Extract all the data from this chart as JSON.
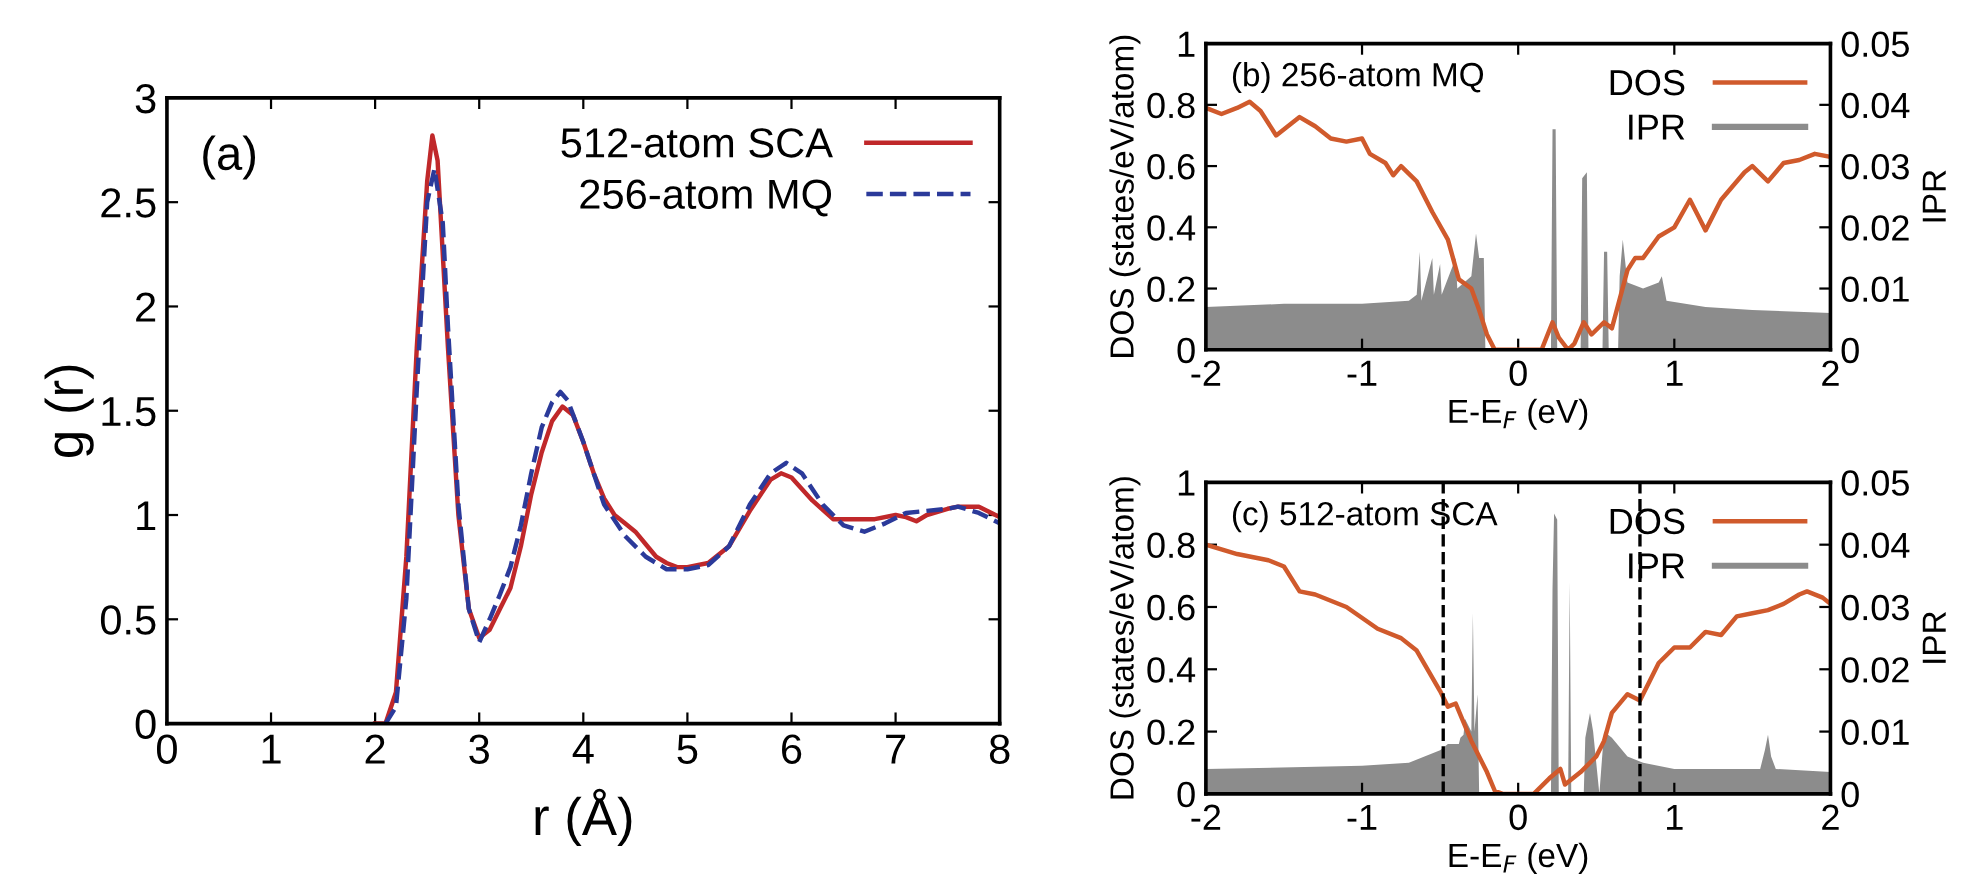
{
  "chart_data": [
    {
      "type": "line",
      "xlabel": "r (Å)",
      "ylabel": "g (r)",
      "annotations": [
        "(a)"
      ],
      "xlim": [
        0,
        8
      ],
      "ylim": [
        0,
        3
      ],
      "xticks": [
        0,
        1,
        2,
        3,
        4,
        5,
        6,
        7,
        8
      ],
      "yticks": [
        0,
        0.5,
        1,
        1.5,
        2,
        2.5,
        3
      ],
      "legend": "top right",
      "grid": false,
      "series": [
        {
          "name": "512-atom SCA",
          "color": "#c0282a",
          "line_style": "solid",
          "x": [
            2.0,
            2.1,
            2.2,
            2.3,
            2.4,
            2.5,
            2.55,
            2.6,
            2.7,
            2.8,
            2.9,
            3.0,
            3.1,
            3.2,
            3.3,
            3.4,
            3.5,
            3.6,
            3.7,
            3.8,
            3.9,
            4.0,
            4.1,
            4.2,
            4.3,
            4.4,
            4.5,
            4.6,
            4.7,
            4.8,
            4.9,
            5.0,
            5.2,
            5.4,
            5.6,
            5.8,
            5.9,
            6.0,
            6.2,
            6.4,
            6.6,
            6.8,
            7.0,
            7.1,
            7.2,
            7.3,
            7.5,
            7.6,
            7.8,
            8.0
          ],
          "values": [
            0,
            0,
            0.15,
            0.8,
            1.8,
            2.6,
            2.82,
            2.7,
            1.8,
            1.0,
            0.55,
            0.41,
            0.45,
            0.55,
            0.65,
            0.85,
            1.1,
            1.3,
            1.45,
            1.52,
            1.48,
            1.35,
            1.2,
            1.08,
            1.0,
            0.96,
            0.92,
            0.86,
            0.8,
            0.77,
            0.75,
            0.75,
            0.77,
            0.85,
            1.02,
            1.17,
            1.2,
            1.18,
            1.07,
            0.98,
            0.98,
            0.98,
            1.0,
            0.99,
            0.97,
            1.0,
            1.03,
            1.04,
            1.04,
            0.99
          ]
        },
        {
          "name": "256-atom MQ",
          "color": "#2b3a9a",
          "line_style": "dashed",
          "x": [
            2.1,
            2.2,
            2.3,
            2.4,
            2.5,
            2.57,
            2.65,
            2.7,
            2.8,
            2.9,
            3.0,
            3.1,
            3.2,
            3.3,
            3.4,
            3.5,
            3.6,
            3.7,
            3.78,
            3.85,
            4.0,
            4.2,
            4.4,
            4.6,
            4.8,
            5.0,
            5.2,
            5.4,
            5.6,
            5.8,
            5.95,
            6.1,
            6.3,
            6.5,
            6.7,
            6.9,
            7.1,
            7.3,
            7.5,
            7.6,
            7.8,
            8.0
          ],
          "values": [
            0,
            0.08,
            0.6,
            1.6,
            2.5,
            2.66,
            2.4,
            1.9,
            1.05,
            0.55,
            0.39,
            0.5,
            0.62,
            0.75,
            0.95,
            1.2,
            1.42,
            1.54,
            1.59,
            1.55,
            1.35,
            1.05,
            0.9,
            0.8,
            0.74,
            0.74,
            0.76,
            0.85,
            1.05,
            1.2,
            1.25,
            1.2,
            1.05,
            0.95,
            0.92,
            0.96,
            1.01,
            1.02,
            1.03,
            1.04,
            1.01,
            0.96
          ]
        }
      ]
    },
    {
      "type": "line",
      "xlabel": "E-E$_{F}$ (eV)",
      "ylabel": "DOS (states/eV/atom)",
      "y2label": "IPR",
      "annotations": [
        "(b) 256-atom MQ"
      ],
      "xlim": [
        -2,
        2
      ],
      "ylim": [
        0,
        1
      ],
      "y2lim": [
        0,
        0.05
      ],
      "xticks": [
        -2,
        -1,
        0,
        1,
        2
      ],
      "yticks": [
        0,
        0.2,
        0.4,
        0.6,
        0.8,
        1
      ],
      "y2ticks": [
        0,
        0.01,
        0.02,
        0.03,
        0.04,
        0.05
      ],
      "legend": "top right",
      "grid": false,
      "series": [
        {
          "name": "DOS",
          "type": "line",
          "color": "#d05a2c",
          "x": [
            -2,
            -1.9,
            -1.8,
            -1.72,
            -1.65,
            -1.55,
            -1.4,
            -1.3,
            -1.2,
            -1.1,
            -1.0,
            -0.95,
            -0.85,
            -0.8,
            -0.75,
            -0.65,
            -0.55,
            -0.45,
            -0.38,
            -0.3,
            -0.25,
            -0.2,
            -0.15,
            0.15,
            0.22,
            0.26,
            0.32,
            0.36,
            0.42,
            0.47,
            0.55,
            0.6,
            0.7,
            0.75,
            0.8,
            0.9,
            1.0,
            1.1,
            1.15,
            1.2,
            1.3,
            1.45,
            1.5,
            1.6,
            1.7,
            1.8,
            1.9,
            2.0
          ],
          "values": [
            0.79,
            0.77,
            0.79,
            0.81,
            0.78,
            0.7,
            0.76,
            0.73,
            0.69,
            0.68,
            0.69,
            0.64,
            0.61,
            0.57,
            0.6,
            0.55,
            0.45,
            0.36,
            0.23,
            0.2,
            0.13,
            0.05,
            0,
            0,
            0.09,
            0.04,
            0,
            0.02,
            0.09,
            0.05,
            0.09,
            0.07,
            0.26,
            0.3,
            0.3,
            0.37,
            0.4,
            0.49,
            0.44,
            0.39,
            0.49,
            0.58,
            0.6,
            0.55,
            0.61,
            0.62,
            0.64,
            0.63
          ]
        },
        {
          "name": "IPR",
          "type": "area",
          "axis": "y2",
          "color": "#8c8c8c",
          "x": [
            -2,
            -1.5,
            -1.0,
            -0.7,
            -0.65,
            -0.63,
            -0.62,
            -0.55,
            -0.54,
            -0.5,
            -0.49,
            -0.4,
            -0.39,
            -0.3,
            -0.27,
            -0.25,
            -0.22,
            -0.21,
            0.21,
            0.22,
            0.24,
            0.25,
            0.4,
            0.41,
            0.44,
            0.45,
            0.54,
            0.55,
            0.57,
            0.58,
            0.64,
            0.65,
            0.67,
            0.7,
            0.8,
            0.9,
            0.92,
            0.95,
            1.2,
            1.5,
            2.0
          ],
          "values": [
            0.007,
            0.0075,
            0.0075,
            0.008,
            0.009,
            0.016,
            0.008,
            0.015,
            0.009,
            0.014,
            0.009,
            0.015,
            0.01,
            0.012,
            0.019,
            0.015,
            0.015,
            0,
            0,
            0.036,
            0.036,
            0,
            0,
            0.028,
            0.029,
            0,
            0,
            0.016,
            0.016,
            0,
            0,
            0.012,
            0.018,
            0.011,
            0.01,
            0.011,
            0.012,
            0.008,
            0.007,
            0.0065,
            0.006
          ]
        }
      ]
    },
    {
      "type": "line",
      "xlabel": "E-E$_{F}$ (eV)",
      "ylabel": "DOS (states/eV/atom)",
      "y2label": "IPR",
      "annotations": [
        "(c) 512-atom SCA"
      ],
      "xlim": [
        -2,
        2
      ],
      "ylim": [
        0,
        1
      ],
      "y2lim": [
        0,
        0.05
      ],
      "xticks": [
        -2,
        -1,
        0,
        1,
        2
      ],
      "yticks": [
        0,
        0.2,
        0.4,
        0.6,
        0.8,
        1
      ],
      "y2ticks": [
        0,
        0.01,
        0.02,
        0.03,
        0.04,
        0.05
      ],
      "legend": "top right",
      "grid": false,
      "ref_lines": [
        {
          "axis": "x",
          "value": -0.48,
          "color": "#000000",
          "line_style": "dashed"
        },
        {
          "axis": "x",
          "value": 0.78,
          "color": "#000000",
          "line_style": "dashed"
        }
      ],
      "series": [
        {
          "name": "DOS",
          "type": "line",
          "color": "#d05a2c",
          "x": [
            -2,
            -1.8,
            -1.6,
            -1.5,
            -1.4,
            -1.3,
            -1.1,
            -0.9,
            -0.75,
            -0.65,
            -0.5,
            -0.45,
            -0.4,
            -0.3,
            -0.2,
            -0.15,
            -0.1,
            0.1,
            0.2,
            0.27,
            0.3,
            0.4,
            0.5,
            0.55,
            0.6,
            0.7,
            0.78,
            0.9,
            1.0,
            1.1,
            1.2,
            1.3,
            1.4,
            1.5,
            1.6,
            1.7,
            1.8,
            1.85,
            1.95,
            2.0
          ],
          "values": [
            0.8,
            0.77,
            0.75,
            0.73,
            0.65,
            0.64,
            0.6,
            0.53,
            0.5,
            0.46,
            0.33,
            0.28,
            0.29,
            0.17,
            0.07,
            0.01,
            0,
            0,
            0.05,
            0.08,
            0.03,
            0.07,
            0.12,
            0.17,
            0.26,
            0.32,
            0.3,
            0.42,
            0.47,
            0.47,
            0.52,
            0.51,
            0.57,
            0.58,
            0.59,
            0.61,
            0.64,
            0.65,
            0.63,
            0.61
          ]
        },
        {
          "name": "IPR",
          "type": "area",
          "axis": "y2",
          "color": "#8c8c8c",
          "x": [
            -2,
            -1.0,
            -0.7,
            -0.6,
            -0.5,
            -0.45,
            -0.38,
            -0.37,
            -0.35,
            -0.34,
            -0.3,
            -0.29,
            -0.28,
            -0.26,
            -0.25,
            0.21,
            0.22,
            0.23,
            0.25,
            0.26,
            0.32,
            0.33,
            0.34,
            0.42,
            0.43,
            0.46,
            0.48,
            0.52,
            0.55,
            0.6,
            0.7,
            0.8,
            1.0,
            1.55,
            1.58,
            1.6,
            1.62,
            1.65,
            2.0
          ],
          "values": [
            0.004,
            0.0045,
            0.005,
            0.006,
            0.007,
            0.008,
            0.008,
            0.009,
            0.0095,
            0.012,
            0.01,
            0.029,
            0.01,
            0.016,
            0,
            0,
            0.033,
            0.045,
            0.044,
            0,
            0,
            0.034,
            0,
            0,
            0.009,
            0.013,
            0.01,
            0,
            0.01,
            0.009,
            0.006,
            0.005,
            0.004,
            0.004,
            0.007,
            0.0095,
            0.006,
            0.004,
            0.0035
          ]
        }
      ]
    }
  ]
}
